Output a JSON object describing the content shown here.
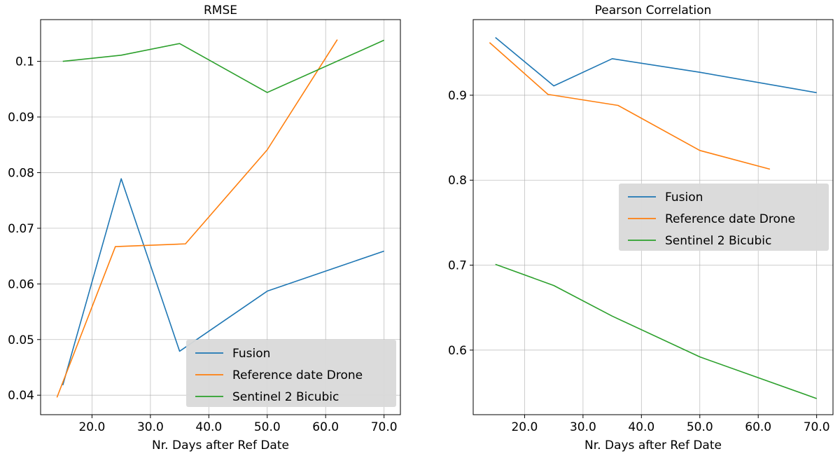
{
  "chart_data": [
    {
      "type": "line",
      "title": "RMSE",
      "xlabel": "Nr. Days after Ref Date",
      "ylabel": "",
      "xlim": [
        11.2,
        72.8
      ],
      "ylim": [
        0.0365,
        0.1075
      ],
      "xticks": [
        20,
        30,
        40,
        50,
        60,
        70
      ],
      "xtick_labels": [
        "20.0",
        "30.0",
        "40.0",
        "50.0",
        "60.0",
        "70.0"
      ],
      "yticks": [
        0.04,
        0.05,
        0.06,
        0.07,
        0.08,
        0.09,
        0.1
      ],
      "ytick_labels": [
        "0.04",
        "0.05",
        "0.06",
        "0.07",
        "0.08",
        "0.09",
        "0.1"
      ],
      "grid": true,
      "legend_position": "bottom-right",
      "series": [
        {
          "name": "Fusion",
          "color": "#1f77b4",
          "x": [
            15,
            25,
            35,
            50,
            70
          ],
          "y": [
            0.0418,
            0.0789,
            0.0479,
            0.0587,
            0.0659
          ]
        },
        {
          "name": "Reference date Drone",
          "color": "#ff7f0e",
          "x": [
            14,
            24,
            36,
            50,
            62
          ],
          "y": [
            0.0396,
            0.0667,
            0.0672,
            0.0841,
            0.1039
          ]
        },
        {
          "name": "Sentinel 2 Bicubic",
          "color": "#2ca02c",
          "x": [
            15,
            25,
            35,
            50,
            70
          ],
          "y": [
            0.1,
            0.1011,
            0.1032,
            0.0944,
            0.1038
          ]
        }
      ]
    },
    {
      "type": "line",
      "title": "Pearson Correlation",
      "xlabel": "Nr. Days after Ref Date",
      "ylabel": "",
      "xlim": [
        11.2,
        72.8
      ],
      "ylim": [
        0.524,
        0.989
      ],
      "xticks": [
        20,
        30,
        40,
        50,
        60,
        70
      ],
      "xtick_labels": [
        "20.0",
        "30.0",
        "40.0",
        "50.0",
        "60.0",
        "70.0"
      ],
      "yticks": [
        0.6,
        0.7,
        0.8,
        0.9
      ],
      "ytick_labels": [
        "0.6",
        "0.7",
        "0.8",
        "0.9"
      ],
      "grid": true,
      "legend_position": "center-right",
      "series": [
        {
          "name": "Fusion",
          "color": "#1f77b4",
          "x": [
            15,
            25,
            35,
            50,
            70
          ],
          "y": [
            0.968,
            0.911,
            0.943,
            0.927,
            0.903
          ]
        },
        {
          "name": "Reference date Drone",
          "color": "#ff7f0e",
          "x": [
            14,
            24,
            36,
            50,
            62
          ],
          "y": [
            0.962,
            0.901,
            0.888,
            0.835,
            0.813
          ]
        },
        {
          "name": "Sentinel 2 Bicubic",
          "color": "#2ca02c",
          "x": [
            15,
            25,
            35,
            50,
            70
          ],
          "y": [
            0.701,
            0.676,
            0.64,
            0.592,
            0.543
          ]
        }
      ]
    }
  ]
}
